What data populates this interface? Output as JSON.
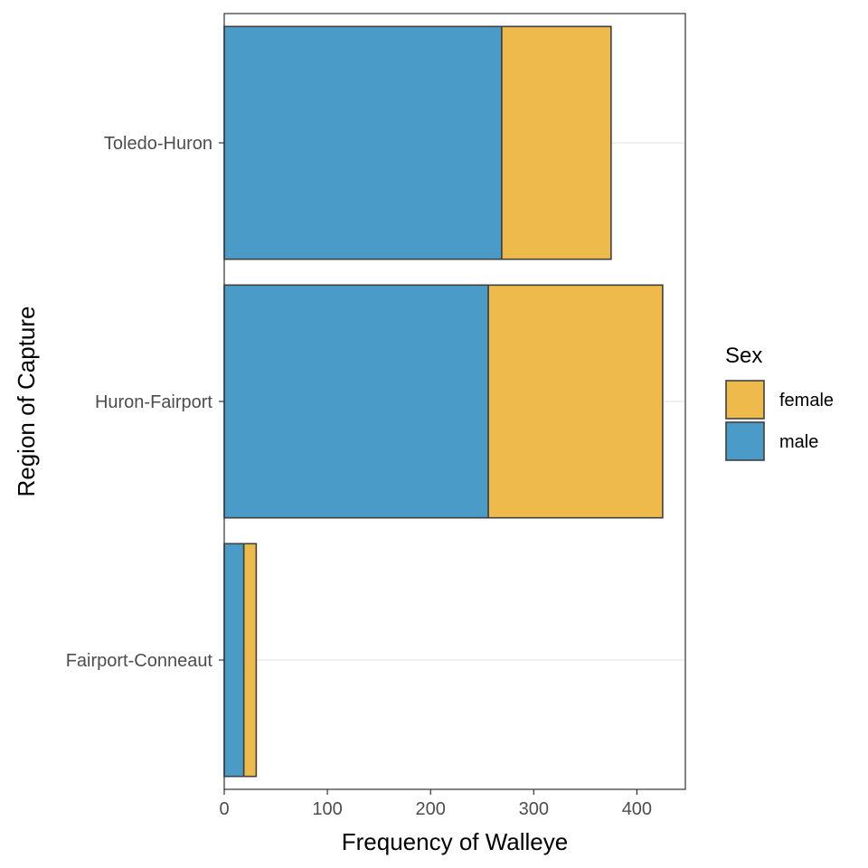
{
  "chart_data": {
    "type": "bar",
    "orientation": "horizontal",
    "stacked": true,
    "categories": [
      "Fairport-Conneaut",
      "Huron-Fairport",
      "Toledo-Huron"
    ],
    "series": [
      {
        "name": "male",
        "color": "#4a9bc7",
        "values": [
          19,
          256,
          269
        ]
      },
      {
        "name": "female",
        "color": "#edba4b",
        "values": [
          12,
          169,
          106
        ]
      }
    ],
    "xlabel": "Frequency of Walleye",
    "ylabel": "Region of Capture",
    "xlim": [
      0,
      447
    ],
    "xticks": [
      0,
      100,
      200,
      300,
      400
    ],
    "legend": {
      "title": "Sex",
      "position": "right",
      "items": [
        {
          "label": "female",
          "color": "#edba4b"
        },
        {
          "label": "male",
          "color": "#4a9bc7"
        }
      ]
    },
    "grid": "major horizontal only",
    "bar_outline": "#404040"
  }
}
